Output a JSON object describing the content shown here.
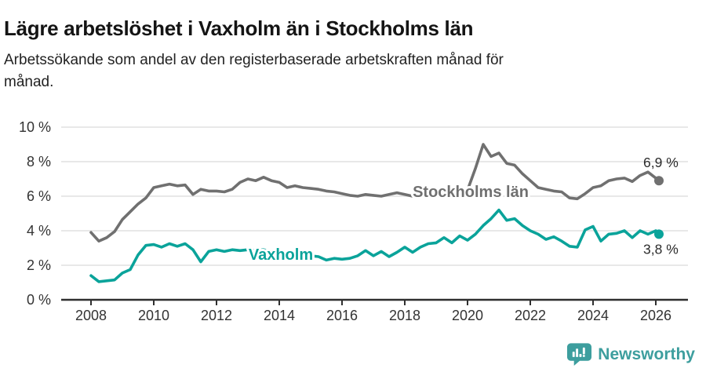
{
  "header": {
    "title": "Lägre arbetslöshet i Vaxholm än i Stockholms län",
    "subtitle_line1": "Arbetssökande som andel av den registerbaserade arbetskraften månad för",
    "subtitle_line2": "månad."
  },
  "colors": {
    "series_gray": "#707070",
    "series_teal": "#0aa39a",
    "brand_teal": "#3d9e9e",
    "grid": "#e0e0e0",
    "axis": "#2f2f2f",
    "text": "#333333"
  },
  "chart_data": {
    "type": "line",
    "title": "Lägre arbetslöshet i Vaxholm än i Stockholms län",
    "subtitle": "Arbetssökande som andel av den registerbaserade arbetskraften månad för månad.",
    "ylabel": "",
    "xlabel": "",
    "ylim": [
      0,
      10
    ],
    "xlim": [
      2007.05,
      2027.05
    ],
    "grid": "horizontal",
    "legend_position": "inline-labels",
    "y_ticks": [
      {
        "value": 0,
        "label": "0 %"
      },
      {
        "value": 2,
        "label": "2 %"
      },
      {
        "value": 4,
        "label": "4 %"
      },
      {
        "value": 6,
        "label": "6 %"
      },
      {
        "value": 8,
        "label": "8 %"
      },
      {
        "value": 10,
        "label": "10 %"
      }
    ],
    "x_ticks": [
      2008,
      2010,
      2012,
      2014,
      2016,
      2018,
      2020,
      2022,
      2024,
      2026
    ],
    "x": [
      2008,
      2008.25,
      2008.5,
      2008.75,
      2009,
      2009.25,
      2009.5,
      2009.75,
      2010,
      2010.25,
      2010.5,
      2010.75,
      2011,
      2011.25,
      2011.5,
      2011.75,
      2012,
      2012.25,
      2012.5,
      2012.75,
      2013,
      2013.25,
      2013.5,
      2013.75,
      2014,
      2014.25,
      2014.5,
      2014.75,
      2015,
      2015.25,
      2015.5,
      2015.75,
      2016,
      2016.25,
      2016.5,
      2016.75,
      2017,
      2017.25,
      2017.5,
      2017.75,
      2018,
      2018.25,
      2018.5,
      2018.75,
      2019,
      2019.25,
      2019.5,
      2019.75,
      2020,
      2020.25,
      2020.5,
      2020.75,
      2021,
      2021.25,
      2021.5,
      2021.75,
      2022,
      2022.25,
      2022.5,
      2022.75,
      2023,
      2023.25,
      2023.5,
      2023.75,
      2024,
      2024.25,
      2024.5,
      2024.75,
      2025,
      2025.25,
      2025.5,
      2025.75,
      2026,
      2026.1
    ],
    "series": [
      {
        "id": "stockholms-lan",
        "name": "Stockholms län",
        "color": "#707070",
        "end_label": "6,9 %",
        "end_value": 6.9,
        "values": [
          3.9,
          3.4,
          3.6,
          3.95,
          4.65,
          5.1,
          5.55,
          5.9,
          6.5,
          6.6,
          6.7,
          6.6,
          6.65,
          6.1,
          6.4,
          6.3,
          6.3,
          6.25,
          6.4,
          6.8,
          7.0,
          6.9,
          7.1,
          6.9,
          6.8,
          6.5,
          6.6,
          6.5,
          6.45,
          6.4,
          6.3,
          6.25,
          6.15,
          6.05,
          6.0,
          6.1,
          6.05,
          6.0,
          6.1,
          6.2,
          6.1,
          6.0,
          6.05,
          6.0,
          6.0,
          6.05,
          6.1,
          6.2,
          6.35,
          7.6,
          9.0,
          8.3,
          8.5,
          7.9,
          7.8,
          7.3,
          6.9,
          6.5,
          6.4,
          6.3,
          6.25,
          5.9,
          5.85,
          6.15,
          6.5,
          6.6,
          6.9,
          7.0,
          7.05,
          6.85,
          7.2,
          7.4,
          7.05,
          6.9
        ]
      },
      {
        "id": "vaxholm",
        "name": "Vaxholm",
        "color": "#0aa39a",
        "end_label": "3,8 %",
        "end_value": 3.8,
        "values": [
          1.4,
          1.05,
          1.1,
          1.15,
          1.55,
          1.75,
          2.6,
          3.15,
          3.2,
          3.05,
          3.25,
          3.1,
          3.25,
          2.9,
          2.2,
          2.8,
          2.9,
          2.8,
          2.9,
          2.85,
          2.9,
          2.85,
          2.9,
          2.8,
          2.75,
          2.7,
          2.65,
          2.6,
          2.55,
          2.5,
          2.3,
          2.4,
          2.35,
          2.4,
          2.55,
          2.85,
          2.55,
          2.8,
          2.5,
          2.75,
          3.05,
          2.75,
          3.05,
          3.25,
          3.3,
          3.6,
          3.3,
          3.7,
          3.45,
          3.8,
          4.3,
          4.7,
          5.2,
          4.6,
          4.7,
          4.3,
          4.0,
          3.8,
          3.5,
          3.65,
          3.4,
          3.1,
          3.05,
          4.05,
          4.25,
          3.4,
          3.8,
          3.85,
          4.0,
          3.6,
          4.0,
          3.8,
          4.0,
          3.8
        ]
      }
    ]
  },
  "footer": {
    "brand": "Newsworthy"
  }
}
